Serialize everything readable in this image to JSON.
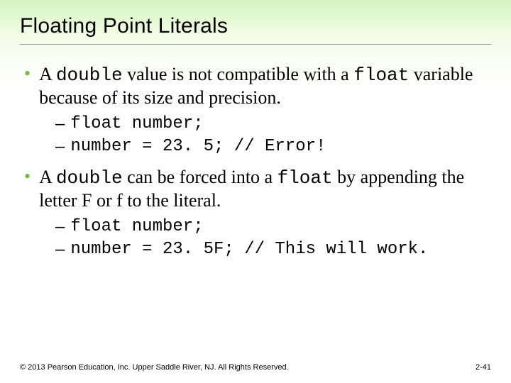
{
  "colors": {
    "gradient_top": "#d6f5c0",
    "gradient_mid": "#f4fce9",
    "background": "#ffffff",
    "bullet_accent": "#77b846",
    "divider": "#999999",
    "text": "#000000"
  },
  "typography": {
    "title_font": "Arial",
    "title_size_pt": 30,
    "body_font": "Times New Roman",
    "body_size_pt": 26,
    "code_font": "Courier New",
    "code_size_pt": 24,
    "footer_size_pt": 11
  },
  "title": "Floating Point Literals",
  "bullets": [
    {
      "segments": [
        {
          "text": "A ",
          "mono": false
        },
        {
          "text": "double",
          "mono": true
        },
        {
          "text": " value is not compatible with a ",
          "mono": false
        },
        {
          "text": "float",
          "mono": true
        },
        {
          "text": " variable because of its size and precision.",
          "mono": false
        }
      ],
      "subs": [
        "float number;",
        "number = 23. 5; // Error!"
      ]
    },
    {
      "segments": [
        {
          "text": "A ",
          "mono": false
        },
        {
          "text": "double",
          "mono": true
        },
        {
          "text": " can be forced into a ",
          "mono": false
        },
        {
          "text": "float",
          "mono": true
        },
        {
          "text": " by appending the letter F or f to the literal.",
          "mono": false
        }
      ],
      "subs": [
        "float number;",
        "number = 23. 5F; // This will work."
      ]
    }
  ],
  "footer": {
    "left": "© 2013 Pearson Education, Inc. Upper Saddle River, NJ. All Rights Reserved.",
    "right": "2-41"
  }
}
